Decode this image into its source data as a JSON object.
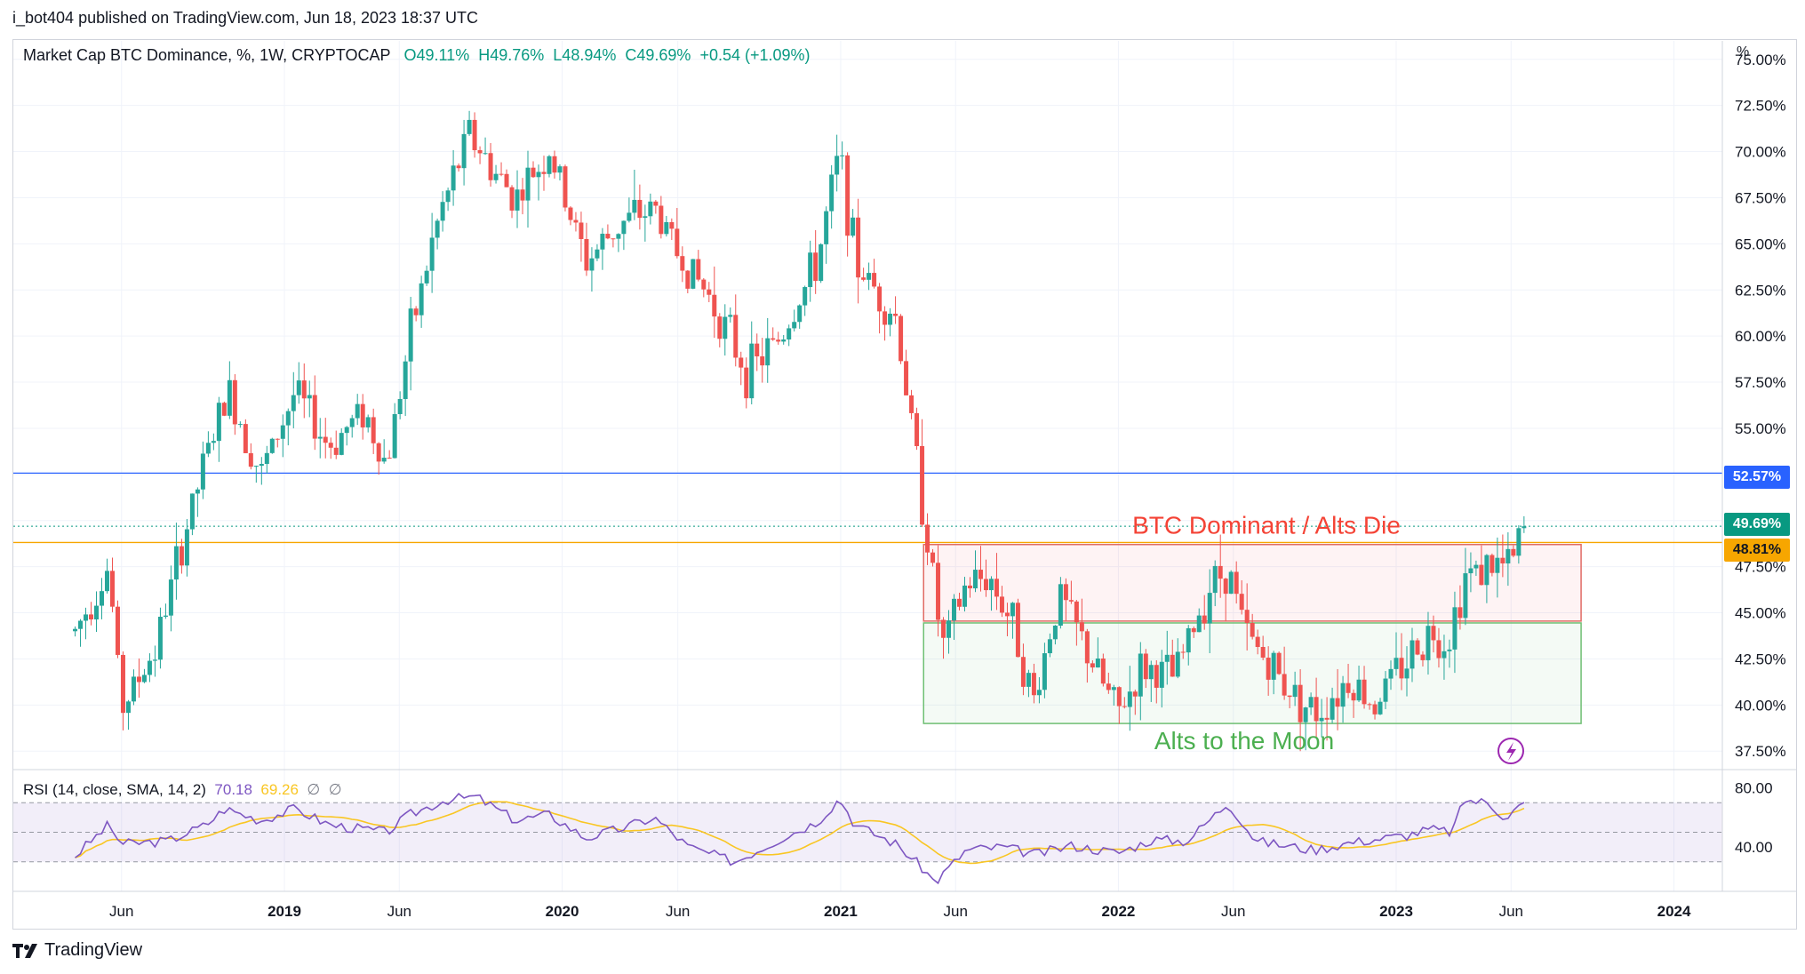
{
  "header": {
    "credit": "i_bot404 published on TradingView.com, Jun 18, 2023 18:37 UTC"
  },
  "legend": {
    "symbol": "Market Cap BTC Dominance, %, 1W, CRYPTOCAP",
    "open": "O49.11%",
    "high": "H49.76%",
    "low": "L48.94%",
    "close": "C49.69%",
    "change": "+0.54 (+1.09%)"
  },
  "rsi_legend": {
    "label": "RSI (14, close, SMA, 14, 2)",
    "rsi": "70.18",
    "sma": "69.26",
    "e1": "∅",
    "e2": "∅"
  },
  "footer": {
    "brand": "TradingView"
  },
  "axis_unit": "%",
  "tags": {
    "blue": "52.57%",
    "green": "49.69%",
    "orange": "48.81%"
  },
  "colors": {
    "up": "#26a69a",
    "down": "#ef5350",
    "blue_line": "#2962ff",
    "orange_line": "#f7a600",
    "rsi": "#7e57c2",
    "rsi_ma": "#f9c623"
  },
  "chart_data": {
    "type": "candlestick",
    "price_axis": {
      "min": 37.5,
      "max": 75.0,
      "ticks": [
        "75.00%",
        "72.50%",
        "70.00%",
        "67.50%",
        "65.00%",
        "62.50%",
        "60.00%",
        "57.50%",
        "55.00%",
        "52.50%",
        "50.00%",
        "47.50%",
        "45.00%",
        "42.50%",
        "40.00%",
        "37.50%"
      ]
    },
    "time_ticks": [
      "Jun",
      "2019",
      "Jun",
      "2020",
      "Jun",
      "2021",
      "Jun",
      "2022",
      "Jun",
      "2023",
      "Jun",
      "2024"
    ],
    "key_prices": [
      {
        "date": "2018-04-01",
        "price": 44.0
      },
      {
        "date": "2018-05-15",
        "price": 47.5
      },
      {
        "date": "2018-06-01",
        "price": 39.8
      },
      {
        "date": "2018-07-15",
        "price": 43.0
      },
      {
        "date": "2018-08-15",
        "price": 48.0
      },
      {
        "date": "2018-09-20",
        "price": 53.5
      },
      {
        "date": "2018-10-20",
        "price": 57.0
      },
      {
        "date": "2018-12-01",
        "price": 52.5
      },
      {
        "date": "2019-01-15",
        "price": 57.0
      },
      {
        "date": "2019-03-01",
        "price": 54.0
      },
      {
        "date": "2019-04-15",
        "price": 56.0
      },
      {
        "date": "2019-05-15",
        "price": 53.0
      },
      {
        "date": "2019-06-15",
        "price": 60.0
      },
      {
        "date": "2019-07-20",
        "price": 66.0
      },
      {
        "date": "2019-09-01",
        "price": 71.0
      },
      {
        "date": "2019-10-01",
        "price": 69.0
      },
      {
        "date": "2019-11-01",
        "price": 67.5
      },
      {
        "date": "2019-12-15",
        "price": 70.0
      },
      {
        "date": "2020-02-01",
        "price": 64.0
      },
      {
        "date": "2020-03-15",
        "price": 66.0
      },
      {
        "date": "2020-05-01",
        "price": 67.0
      },
      {
        "date": "2020-06-01",
        "price": 64.5
      },
      {
        "date": "2020-07-15",
        "price": 62.0
      },
      {
        "date": "2020-09-01",
        "price": 58.0
      },
      {
        "date": "2020-10-15",
        "price": 60.0
      },
      {
        "date": "2020-12-01",
        "price": 64.0
      },
      {
        "date": "2020-12-31",
        "price": 70.0
      },
      {
        "date": "2021-01-20",
        "price": 64.0
      },
      {
        "date": "2021-03-15",
        "price": 61.0
      },
      {
        "date": "2021-04-20",
        "price": 50.5
      },
      {
        "date": "2021-05-15",
        "price": 43.0
      },
      {
        "date": "2021-06-15",
        "price": 46.5
      },
      {
        "date": "2021-07-15",
        "price": 47.0
      },
      {
        "date": "2021-08-20",
        "price": 44.0
      },
      {
        "date": "2021-09-10",
        "price": 40.0
      },
      {
        "date": "2021-10-15",
        "price": 46.0
      },
      {
        "date": "2021-12-01",
        "price": 42.0
      },
      {
        "date": "2021-12-31",
        "price": 39.5
      },
      {
        "date": "2022-02-01",
        "price": 42.0
      },
      {
        "date": "2022-03-15",
        "price": 41.5
      },
      {
        "date": "2022-05-01",
        "price": 46.5
      },
      {
        "date": "2022-05-25",
        "price": 47.5
      },
      {
        "date": "2022-06-15",
        "price": 44.0
      },
      {
        "date": "2022-08-01",
        "price": 41.5
      },
      {
        "date": "2022-09-15",
        "price": 39.5
      },
      {
        "date": "2022-11-01",
        "price": 41.5
      },
      {
        "date": "2022-12-01",
        "price": 40.0
      },
      {
        "date": "2023-01-15",
        "price": 42.5
      },
      {
        "date": "2023-02-15",
        "price": 44.0
      },
      {
        "date": "2023-03-10",
        "price": 43.5
      },
      {
        "date": "2023-04-01",
        "price": 47.0
      },
      {
        "date": "2023-05-01",
        "price": 47.5
      },
      {
        "date": "2023-06-01",
        "price": 47.5
      },
      {
        "date": "2023-06-18",
        "price": 49.69
      }
    ],
    "horizontal_lines": [
      {
        "price": 52.57,
        "color": "blue"
      },
      {
        "price": 48.81,
        "color": "orange"
      }
    ],
    "zones": [
      {
        "label": "BTC Dominant / Alts Die",
        "from": "2021-04-20",
        "to": "2023-09-01",
        "low": 44.55,
        "high": 48.7,
        "color": "red"
      },
      {
        "label": "Alts to the Moon",
        "from": "2021-04-20",
        "to": "2023-09-01",
        "low": 39.0,
        "high": 44.45,
        "color": "green"
      }
    ],
    "rsi": {
      "axis_ticks": [
        "80.00",
        "40.00"
      ],
      "bands": [
        70,
        50,
        30
      ],
      "values": [
        {
          "date": "2018-04-01",
          "v": 34
        },
        {
          "date": "2018-05-15",
          "v": 55
        },
        {
          "date": "2018-06-01",
          "v": 42
        },
        {
          "date": "2018-08-01",
          "v": 44
        },
        {
          "date": "2018-09-20",
          "v": 55
        },
        {
          "date": "2018-10-15",
          "v": 66
        },
        {
          "date": "2018-12-01",
          "v": 58
        },
        {
          "date": "2019-01-15",
          "v": 66
        },
        {
          "date": "2019-03-01",
          "v": 55
        },
        {
          "date": "2019-05-15",
          "v": 50
        },
        {
          "date": "2019-06-15",
          "v": 62
        },
        {
          "date": "2019-08-01",
          "v": 72
        },
        {
          "date": "2019-09-10",
          "v": 74
        },
        {
          "date": "2019-11-01",
          "v": 58
        },
        {
          "date": "2019-12-15",
          "v": 62
        },
        {
          "date": "2020-02-01",
          "v": 46
        },
        {
          "date": "2020-03-15",
          "v": 52
        },
        {
          "date": "2020-05-01",
          "v": 60
        },
        {
          "date": "2020-06-15",
          "v": 40
        },
        {
          "date": "2020-08-15",
          "v": 30
        },
        {
          "date": "2020-10-15",
          "v": 46
        },
        {
          "date": "2020-12-01",
          "v": 57
        },
        {
          "date": "2020-12-31",
          "v": 73
        },
        {
          "date": "2021-01-20",
          "v": 55
        },
        {
          "date": "2021-03-15",
          "v": 42
        },
        {
          "date": "2021-04-20",
          "v": 25
        },
        {
          "date": "2021-05-05",
          "v": 16
        },
        {
          "date": "2021-06-15",
          "v": 38
        },
        {
          "date": "2021-08-01",
          "v": 40
        },
        {
          "date": "2021-09-15",
          "v": 35
        },
        {
          "date": "2021-11-01",
          "v": 41
        },
        {
          "date": "2021-12-31",
          "v": 36
        },
        {
          "date": "2022-02-15",
          "v": 45
        },
        {
          "date": "2022-04-01",
          "v": 44
        },
        {
          "date": "2022-05-25",
          "v": 70
        },
        {
          "date": "2022-07-01",
          "v": 44
        },
        {
          "date": "2022-09-15",
          "v": 38
        },
        {
          "date": "2022-11-01",
          "v": 43
        },
        {
          "date": "2023-01-15",
          "v": 48
        },
        {
          "date": "2023-02-15",
          "v": 52
        },
        {
          "date": "2023-03-15",
          "v": 50
        },
        {
          "date": "2023-04-01",
          "v": 72
        },
        {
          "date": "2023-05-01",
          "v": 70
        },
        {
          "date": "2023-05-25",
          "v": 60
        },
        {
          "date": "2023-06-18",
          "v": 70.18
        }
      ]
    }
  }
}
